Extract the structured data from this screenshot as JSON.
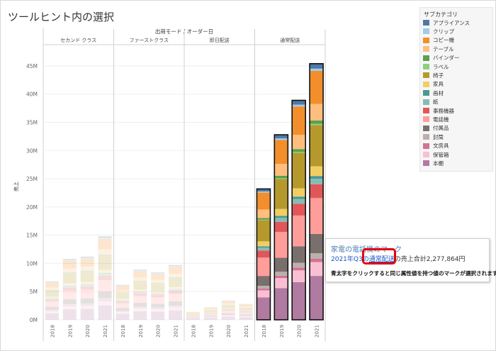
{
  "page": {
    "title": "ツールヒント内の選択"
  },
  "chart_data": {
    "type": "bar",
    "stacked": true,
    "header_title": "出荷モード / オーダー日",
    "panels": [
      "セカンド クラス",
      "ファーストクラス",
      "即日配送",
      "通常配送"
    ],
    "years": [
      "2018",
      "2019",
      "2020",
      "2021"
    ],
    "ylabel": "売上",
    "yticks": [
      "0M",
      "5M",
      "10M",
      "15M",
      "20M",
      "25M",
      "30M",
      "35M",
      "40M",
      "45M"
    ],
    "ylim": [
      0,
      46
    ],
    "grid": true,
    "highlighted_panel": "通常配送",
    "totals_M": [
      [
        6.8,
        10.8,
        11.2,
        14.8
      ],
      [
        6.2,
        8.9,
        8.4,
        9.7
      ],
      [
        1.4,
        2.2,
        3.4,
        2.8
      ],
      [
        23.2,
        32.8,
        38.9,
        45.4
      ]
    ],
    "category_shares": [
      0.018,
      0.008,
      0.12,
      0.06,
      0.012,
      0.004,
      0.15,
      0.035,
      0.01,
      0.02,
      0.05,
      0.13,
      0.07,
      0.02,
      0.012,
      0.05,
      0.159
    ]
  },
  "legend": {
    "title": "サブカテゴリ",
    "items": [
      {
        "label": "アプライアンス",
        "color": "#4e79a7"
      },
      {
        "label": "クリップ",
        "color": "#a0cbe8"
      },
      {
        "label": "コピー機",
        "color": "#f28e2b"
      },
      {
        "label": "テーブル",
        "color": "#ffbe7d"
      },
      {
        "label": "バインダー",
        "color": "#59a14f"
      },
      {
        "label": "ラベル",
        "color": "#8cd17d"
      },
      {
        "label": "椅子",
        "color": "#b6992d"
      },
      {
        "label": "家具",
        "color": "#f1ce63"
      },
      {
        "label": "画材",
        "color": "#499894"
      },
      {
        "label": "紙",
        "color": "#86bcb6"
      },
      {
        "label": "事務機器",
        "color": "#e15759"
      },
      {
        "label": "電話機",
        "color": "#ff9d9a"
      },
      {
        "label": "付属品",
        "color": "#79706e"
      },
      {
        "label": "封筒",
        "color": "#bab0ac"
      },
      {
        "label": "文房具",
        "color": "#d37295"
      },
      {
        "label": "保管箱",
        "color": "#fabfd2"
      },
      {
        "label": "本棚",
        "color": "#b07aa1"
      }
    ]
  },
  "tooltip": {
    "line1": "家電の電話機のマーク",
    "year_label": "2021年Q3の",
    "link_text": "通常配送",
    "sales_text": "の売上合計2,277,864円",
    "instruction": "青太字をクリックすると同じ属性値を持つ値のマークが選択されます。"
  }
}
